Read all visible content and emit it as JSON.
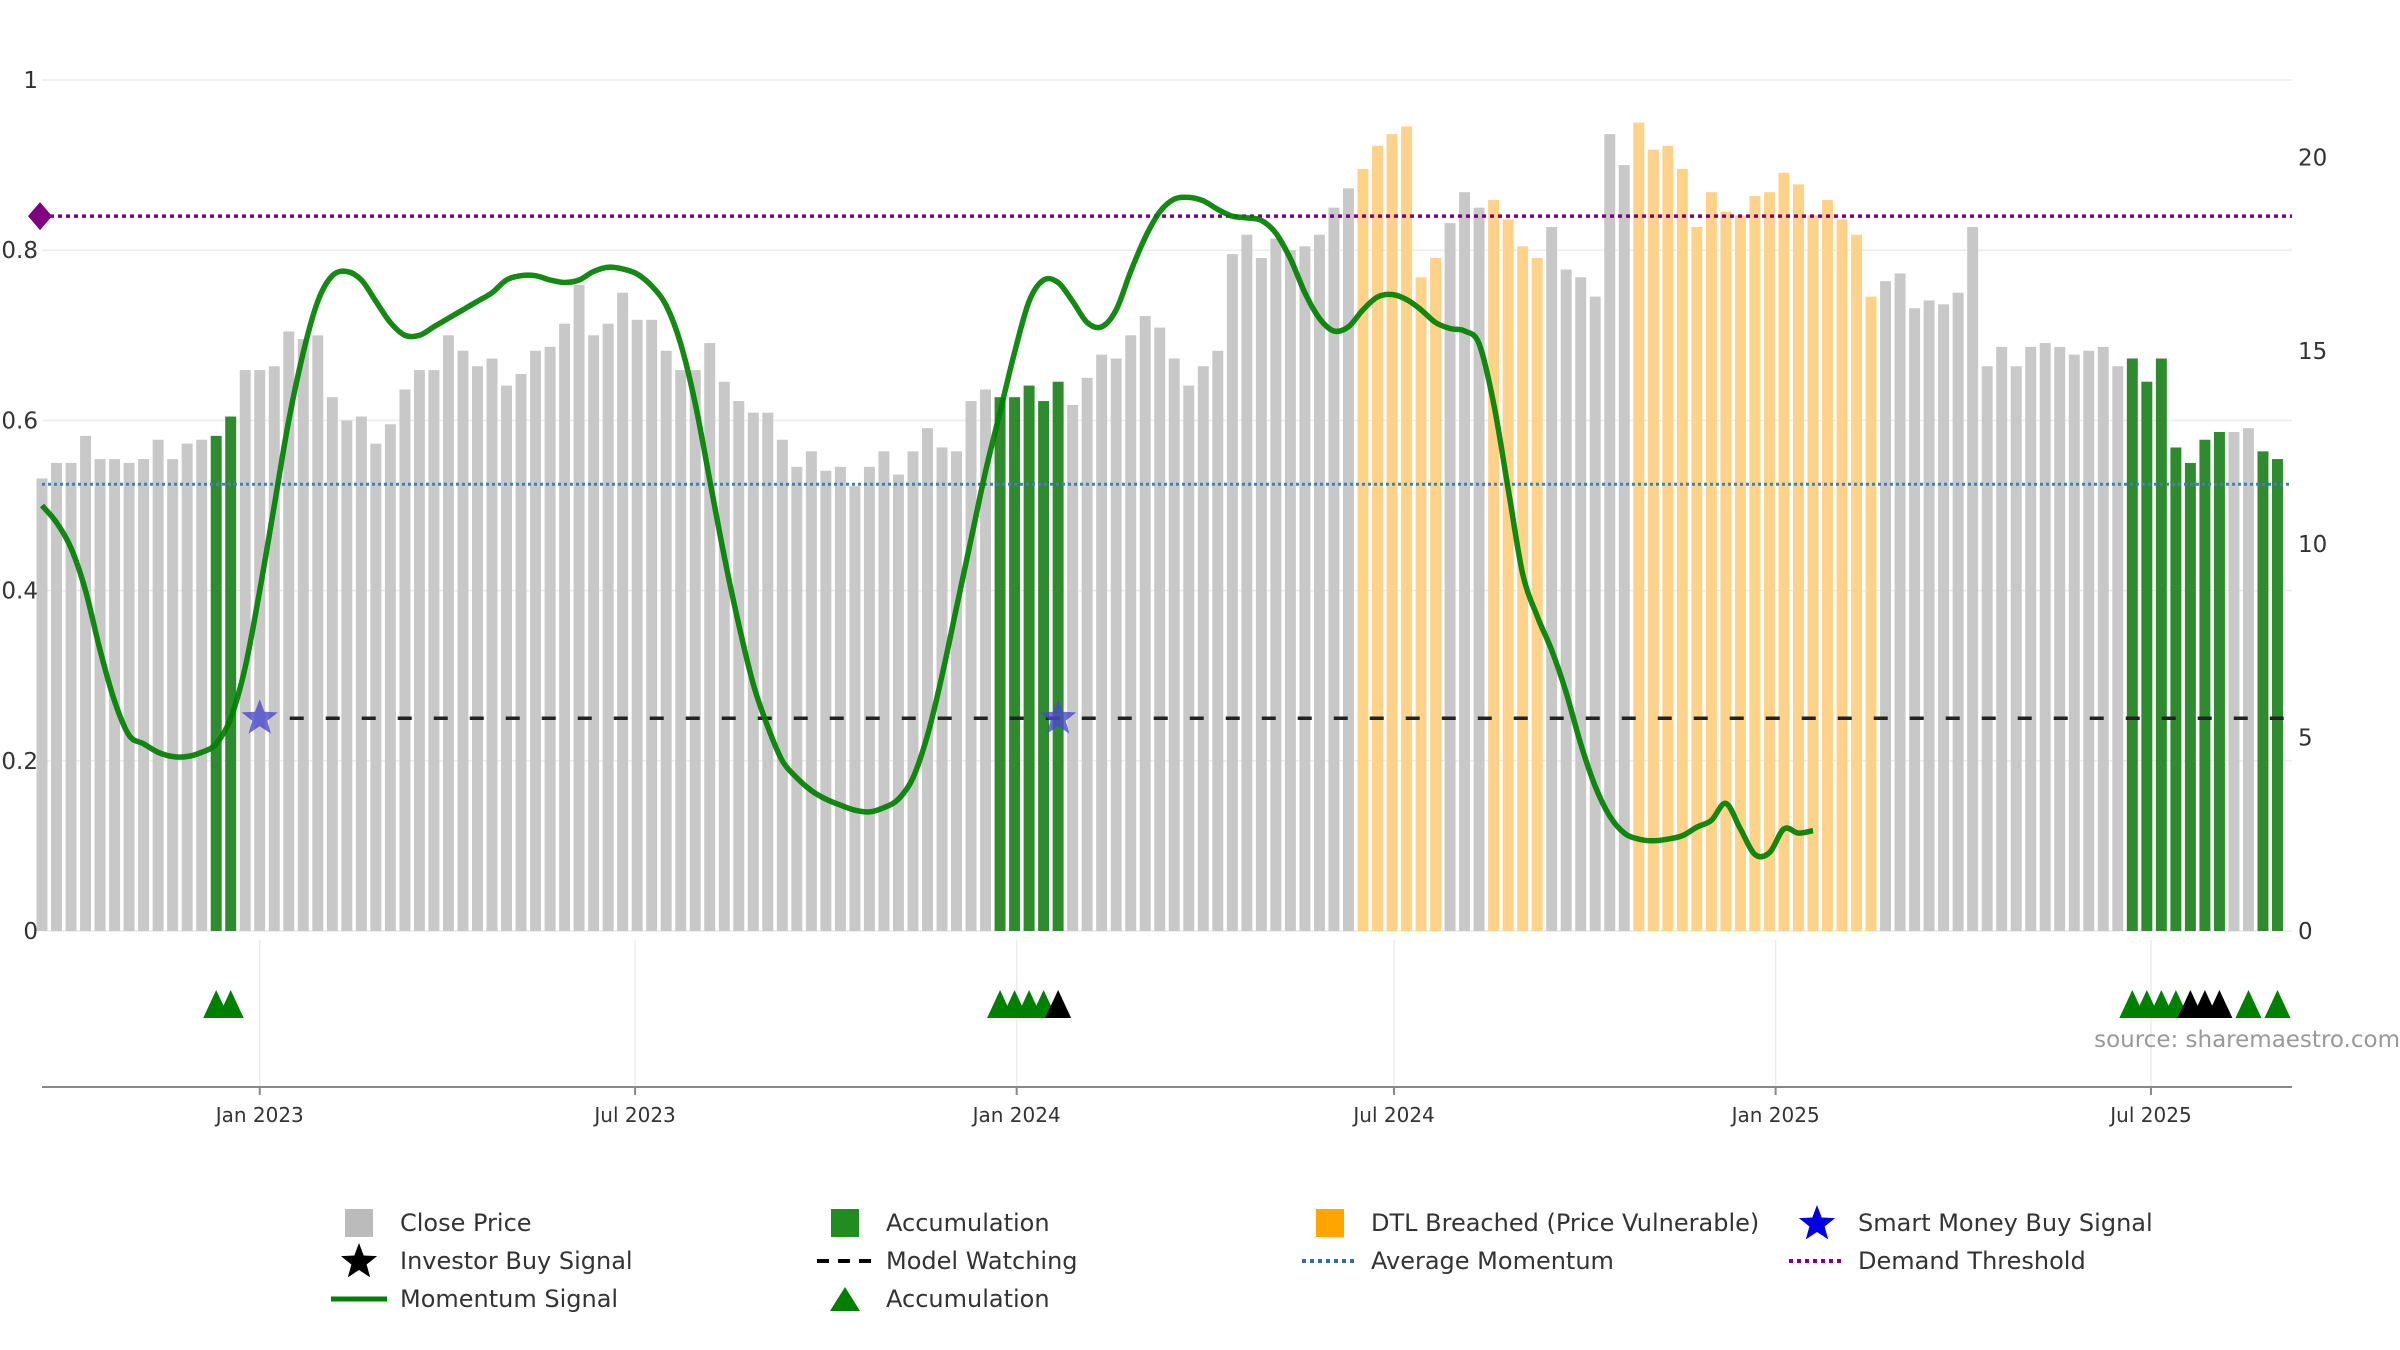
{
  "chart_data": {
    "type": "bar",
    "y_left": {
      "ticks": [
        "0",
        "0.2",
        "0.4",
        "0.6",
        "0.8",
        "1"
      ],
      "range": [
        0,
        1
      ]
    },
    "y_right": {
      "ticks": [
        "0",
        "5",
        "10",
        "15",
        "20"
      ],
      "range": [
        0,
        22
      ]
    },
    "x_ticks": [
      "Jan 2023",
      "Jul 2023",
      "Jan 2024",
      "Jul 2024",
      "Jan 2025",
      "Jul 2025"
    ],
    "x_range": [
      "2022-09-18",
      "2025-09-07"
    ],
    "bars": {
      "start_date": "2022-09-18",
      "interval_days": 7,
      "close": [
        11.7,
        12.1,
        12.1,
        12.8,
        12.2,
        12.2,
        12.1,
        12.2,
        12.7,
        12.2,
        12.6,
        12.7,
        12.8,
        13.3,
        14.5,
        14.5,
        14.6,
        15.5,
        15.3,
        15.4,
        13.8,
        13.2,
        13.3,
        12.6,
        13.1,
        14.0,
        14.5,
        14.5,
        15.4,
        15.0,
        14.6,
        14.8,
        14.1,
        14.4,
        15.0,
        15.1,
        15.7,
        16.7,
        15.4,
        15.7,
        16.5,
        15.8,
        15.8,
        15.0,
        14.5,
        14.5,
        15.2,
        14.2,
        13.7,
        13.4,
        13.4,
        12.7,
        12.0,
        12.4,
        11.9,
        12.0,
        11.5,
        12.0,
        12.4,
        11.8,
        12.4,
        13.0,
        12.5,
        12.4,
        13.7,
        14.0,
        13.8,
        13.8,
        14.1,
        13.7,
        14.2,
        13.6,
        14.3,
        14.9,
        14.8,
        15.4,
        15.9,
        15.6,
        14.8,
        14.1,
        14.6,
        15.0,
        17.5,
        18.0,
        17.4,
        17.9,
        17.6,
        17.7,
        18.0,
        18.7,
        19.2,
        19.7,
        20.3,
        20.6,
        20.8,
        16.9,
        17.4,
        18.3,
        19.1,
        18.7,
        18.9,
        18.4,
        17.7,
        17.4,
        18.2,
        17.1,
        16.9,
        16.4,
        20.6,
        19.8,
        20.9,
        20.2,
        20.3,
        19.7,
        18.2,
        19.1,
        18.6,
        18.5,
        19.0,
        19.1,
        19.6,
        19.3,
        18.5,
        18.9,
        18.4,
        18.0,
        16.4,
        16.8,
        17.0,
        16.1,
        16.3,
        16.2,
        16.5,
        18.2,
        14.6,
        15.1,
        14.6,
        15.1,
        15.2,
        15.1,
        14.9,
        15.0,
        15.1,
        14.6,
        14.8,
        14.2,
        14.8,
        12.5,
        12.1,
        12.7,
        12.9,
        12.9,
        13.0,
        12.4,
        12.2
      ],
      "accumulation_weeks": [
        12,
        13,
        66,
        67,
        68,
        69,
        70,
        144,
        145,
        146,
        147,
        148,
        149,
        150,
        153,
        154
      ],
      "dtl_breached_weeks": [
        91,
        92,
        93,
        94,
        95,
        96,
        100,
        101,
        102,
        103,
        110,
        111,
        112,
        113,
        114,
        115,
        116,
        117,
        118,
        119,
        120,
        121,
        122,
        123,
        124,
        125,
        126
      ]
    },
    "momentum": {
      "start_date": "2022-09-18",
      "interval_days": 7,
      "values": [
        0.5,
        0.48,
        0.45,
        0.4,
        0.33,
        0.27,
        0.23,
        0.22,
        0.21,
        0.205,
        0.205,
        0.21,
        0.22,
        0.25,
        0.31,
        0.4,
        0.5,
        0.6,
        0.68,
        0.74,
        0.77,
        0.775,
        0.765,
        0.74,
        0.715,
        0.7,
        0.7,
        0.71,
        0.72,
        0.73,
        0.74,
        0.75,
        0.765,
        0.77,
        0.77,
        0.765,
        0.762,
        0.765,
        0.775,
        0.78,
        0.778,
        0.772,
        0.758,
        0.735,
        0.69,
        0.62,
        0.53,
        0.44,
        0.36,
        0.29,
        0.24,
        0.2,
        0.18,
        0.165,
        0.155,
        0.148,
        0.142,
        0.14,
        0.145,
        0.155,
        0.18,
        0.23,
        0.3,
        0.38,
        0.46,
        0.54,
        0.61,
        0.68,
        0.74,
        0.765,
        0.762,
        0.74,
        0.715,
        0.71,
        0.73,
        0.775,
        0.815,
        0.845,
        0.86,
        0.862,
        0.858,
        0.848,
        0.84,
        0.838,
        0.835,
        0.82,
        0.79,
        0.75,
        0.72,
        0.705,
        0.71,
        0.73,
        0.745,
        0.748,
        0.742,
        0.73,
        0.715,
        0.708,
        0.705,
        0.69,
        0.62,
        0.52,
        0.42,
        0.37,
        0.33,
        0.28,
        0.22,
        0.17,
        0.135,
        0.115,
        0.108,
        0.106,
        0.108,
        0.112,
        0.122,
        0.13,
        0.15,
        0.12,
        0.09,
        0.092,
        0.12,
        0.115,
        0.118
      ]
    },
    "average_momentum": 0.525,
    "demand_threshold": 0.84,
    "model_watching_level": 0.25,
    "smart_money_buy_signals": [
      {
        "date": "2023-01-01",
        "y": 0.25
      },
      {
        "date": "2024-01-21",
        "y": 0.25
      }
    ],
    "accumulation_markers": [
      "2022-12-11",
      "2022-12-18",
      "2023-12-24",
      "2023-12-31",
      "2024-01-07",
      "2024-01-14",
      "2025-06-22",
      "2025-06-29",
      "2025-07-06",
      "2025-07-13",
      "2025-08-17",
      "2025-08-31"
    ],
    "investor_buy_markers": [
      "2024-01-21",
      "2025-07-20",
      "2025-07-27",
      "2025-08-03"
    ],
    "source": "source: sharemaestro.com",
    "legend": [
      {
        "label": "Close Price",
        "symbol": "square",
        "color": "#bbbbbb"
      },
      {
        "label": "Accumulation",
        "symbol": "square",
        "color": "#228b22"
      },
      {
        "label": "DTL Breached (Price Vulnerable)",
        "symbol": "square",
        "color": "#ffa500"
      },
      {
        "label": "Smart Money Buy Signal",
        "symbol": "star",
        "color": "#0000e0"
      },
      {
        "label": "Investor Buy Signal",
        "symbol": "star",
        "color": "#000000"
      },
      {
        "label": "Model Watching",
        "symbol": "dash",
        "color": "#000000"
      },
      {
        "label": "Average Momentum",
        "symbol": "dot",
        "color": "#2a6fa8"
      },
      {
        "label": "Demand Threshold",
        "symbol": "dot",
        "color": "#800080"
      },
      {
        "label": "Momentum Signal",
        "symbol": "line",
        "color": "#008000"
      },
      {
        "label": "Accumulation",
        "symbol": "triangle",
        "color": "#008000"
      }
    ],
    "colors": {
      "close": "#c8c8c8",
      "accumulation": "#2e8b2e",
      "dtl": "#ffd28a",
      "momentum": "#008000",
      "average": "#4a7fa8",
      "threshold": "#800080",
      "marker_green": "#008000",
      "marker_black": "#000000",
      "star": "#4a4acc",
      "grid": "#ececec"
    }
  }
}
